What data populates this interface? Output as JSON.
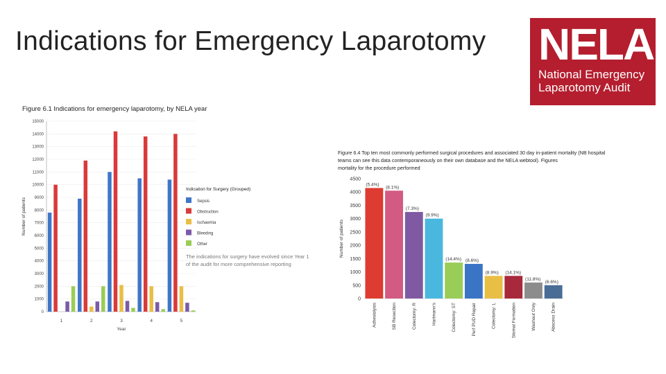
{
  "slide": {
    "title": "Indications for Emergency Laparotomy"
  },
  "logo": {
    "word": "NELA",
    "subtitle_line1": "National Emergency",
    "subtitle_line2": "Laparotomy Audit",
    "color": "#b41e2e"
  },
  "chart_data": [
    {
      "type": "bar",
      "title": "Figure 6.1 Indications for emergency laparotomy, by NELA year",
      "xlabel": "Year",
      "ylabel": "Number of patients",
      "categories": [
        "1",
        "2",
        "3",
        "4",
        "5"
      ],
      "ylim": [
        0,
        15000
      ],
      "yticks": [
        0,
        1000,
        2000,
        3000,
        4000,
        5000,
        6000,
        7000,
        8000,
        9000,
        10000,
        11000,
        12000,
        13000,
        14000,
        15000
      ],
      "legend_title": "Indication for Surgery (Grouped)",
      "note_line1": "The indications for surgery have evolved since Year 1",
      "note_line2": "of the audit for more comprehensive reporting",
      "series": [
        {
          "name": "Sepsis",
          "color": "#3f76c8",
          "values": [
            7800,
            8900,
            11000,
            10500,
            10400
          ]
        },
        {
          "name": "Obstruction",
          "color": "#d93a3a",
          "values": [
            10000,
            11900,
            14200,
            13800,
            14000
          ]
        },
        {
          "name": "Ischaemia",
          "color": "#e8be45",
          "values": [
            0,
            400,
            2100,
            2000,
            2000
          ]
        },
        {
          "name": "Bleeding",
          "color": "#7b5aa8",
          "values": [
            800,
            800,
            850,
            750,
            700
          ]
        },
        {
          "name": "Other",
          "color": "#9acd57",
          "values": [
            2000,
            2000,
            300,
            200,
            100
          ]
        }
      ]
    },
    {
      "type": "bar",
      "title_line1": "Figure 6.4 Top ten most commonly performed surgical procedures and associated 30 day in-patient mortality (NB hospital",
      "title_line2": "teams can see this data contemporaneously on their own database and the NELA webtool). Figures",
      "title_line3": "mortality for the procedure performed",
      "ylabel": "Number of patients",
      "ylim": [
        0,
        4500
      ],
      "yticks": [
        0,
        500,
        1000,
        1500,
        2000,
        2500,
        3000,
        3500,
        4000,
        4500
      ],
      "categories": [
        "Adhesiolysis",
        "SB Resection",
        "Colectomy: R",
        "Hartmann's",
        "Colectomy: ST",
        "Perf PUD Repair",
        "Colectomy: L",
        "Stomal Formation",
        "Washout Only",
        "Abscess Drain"
      ],
      "values": [
        4150,
        4050,
        3250,
        3000,
        1350,
        1300,
        850,
        850,
        600,
        500
      ],
      "mortality_labels": [
        "(5.4%)",
        "(8.1%)",
        "(7.3%)",
        "(9.9%)",
        "(14.4%)",
        "(8.6%)",
        "(8.9%)",
        "(14.1%)",
        "(11.8%)",
        "(6.6%)"
      ],
      "colors": [
        "#dd3c31",
        "#d35a82",
        "#7f5aa2",
        "#4ab8de",
        "#9acd57",
        "#3a74c5",
        "#e8be45",
        "#a8283c",
        "#8c8c8c",
        "#4a6d96"
      ]
    }
  ]
}
